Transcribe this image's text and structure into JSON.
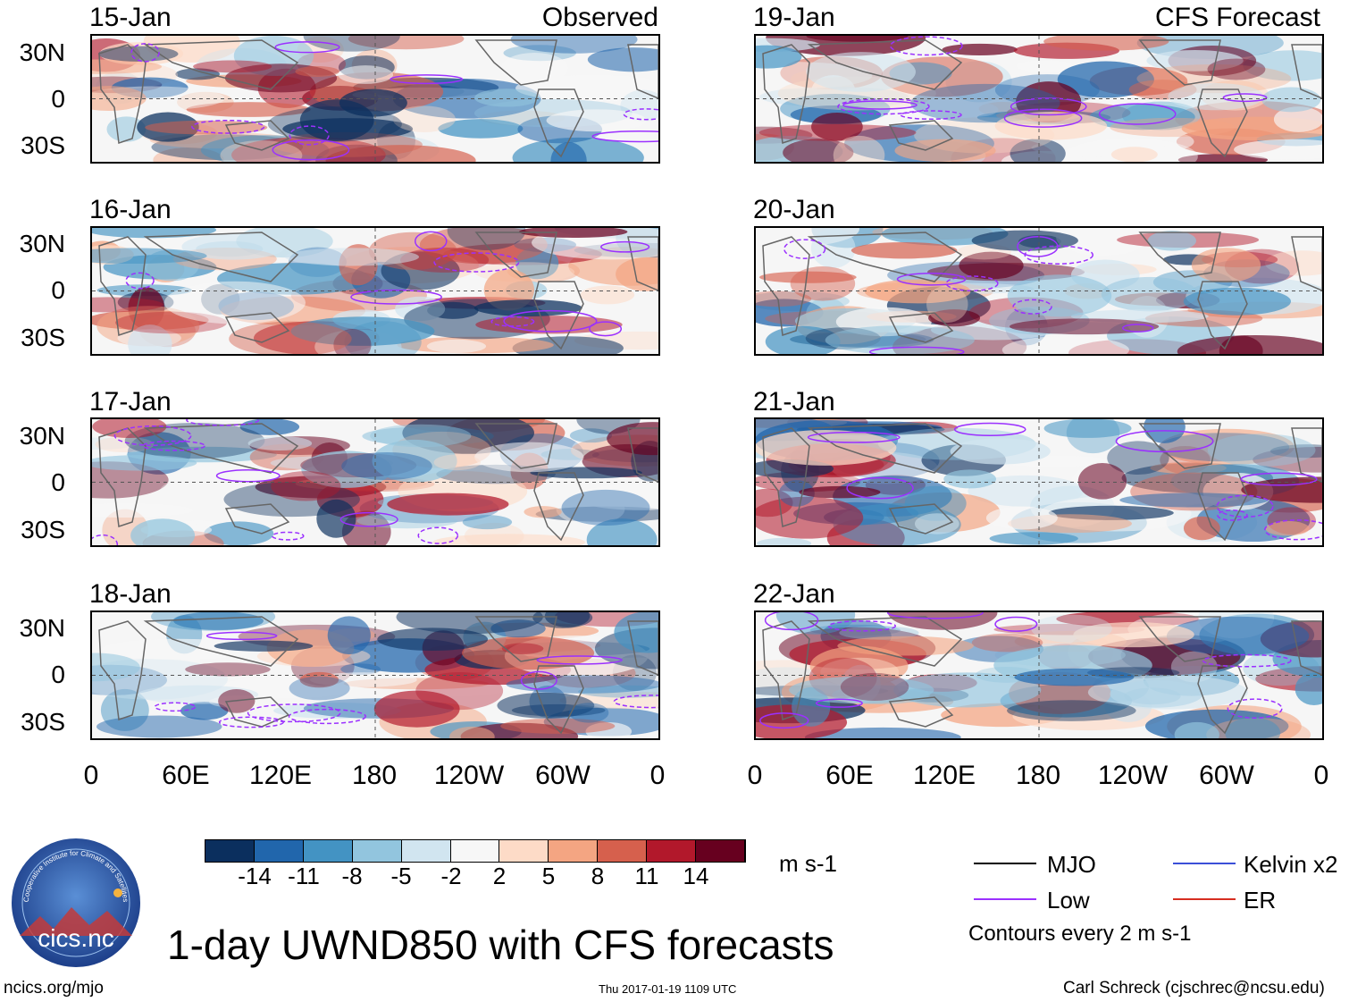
{
  "panels_left": [
    {
      "date": "15-Jan",
      "tag": "Observed"
    },
    {
      "date": "16-Jan",
      "tag": ""
    },
    {
      "date": "17-Jan",
      "tag": ""
    },
    {
      "date": "18-Jan",
      "tag": ""
    }
  ],
  "panels_right": [
    {
      "date": "19-Jan",
      "tag": "CFS Forecast"
    },
    {
      "date": "20-Jan",
      "tag": ""
    },
    {
      "date": "21-Jan",
      "tag": ""
    },
    {
      "date": "22-Jan",
      "tag": ""
    }
  ],
  "lat_labels": [
    "30N",
    "0",
    "30S"
  ],
  "lon_labels": [
    "0",
    "60E",
    "120E",
    "180",
    "120W",
    "60W",
    "0"
  ],
  "colorbar": {
    "unit": "m s-1",
    "tick_labels": [
      "-14",
      "-11",
      "-8",
      "-5",
      "-2",
      "2",
      "5",
      "8",
      "11",
      "14"
    ],
    "colors": [
      "#0b2f5e",
      "#2166ac",
      "#4393c3",
      "#92c5de",
      "#d1e5f0",
      "#f7f7f7",
      "#fddbc7",
      "#f4a582",
      "#d6604d",
      "#b2182b",
      "#67001f"
    ]
  },
  "legend": {
    "mjo": "MJO",
    "low": "Low",
    "kelvin": "Kelvin x2",
    "er": "ER",
    "contours": "Contours every 2 m s-1",
    "colors": {
      "mjo": "#000000",
      "low": "#9b30ff",
      "kelvin": "#3b4fd8",
      "er": "#d62d20"
    }
  },
  "logo": {
    "text": "cics.nc",
    "ring_text": "Cooperative Institute for Climate and Satellites"
  },
  "title": "1-day UWND850 with CFS forecasts",
  "footer": {
    "url": "ncics.org/mjo",
    "timestamp": "Thu 2017-01-19 1109 UTC",
    "author": "Carl Schreck (cjschrec@ncsu.edu)"
  }
}
